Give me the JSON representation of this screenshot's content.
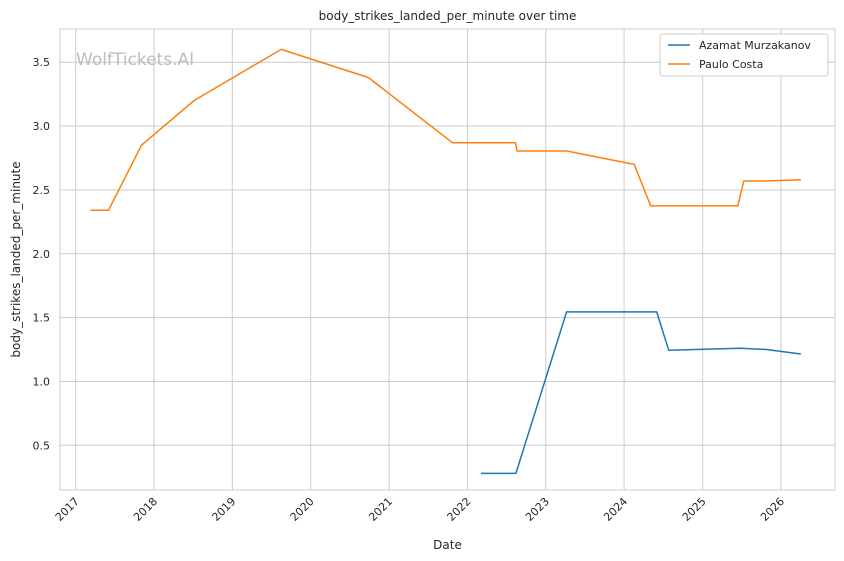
{
  "chart_data": {
    "type": "line",
    "title": "body_strikes_landed_per_minute over time",
    "xlabel": "Date",
    "ylabel": "body_strikes_landed_per_minute",
    "watermark": "WolfTickets.AI",
    "x_ticks": [
      "2017",
      "2018",
      "2019",
      "2020",
      "2021",
      "2022",
      "2023",
      "2024",
      "2025",
      "2026"
    ],
    "y_ticks": [
      "0.5",
      "1.0",
      "1.5",
      "2.0",
      "2.5",
      "3.0",
      "3.5"
    ],
    "xlim": [
      "2016-10-20",
      "2026-09-10"
    ],
    "ylim": [
      0.15,
      3.76
    ],
    "grid": true,
    "legend_position": "top-right",
    "series": [
      {
        "name": "Azamat Murzakanov",
        "color": "#1f77b4",
        "points": [
          [
            "2022-03-05",
            0.28
          ],
          [
            "2022-08-15",
            0.28
          ],
          [
            "2023-04-08",
            1.545
          ],
          [
            "2024-06-01",
            1.545
          ],
          [
            "2024-07-27",
            1.245
          ],
          [
            "2025-06-28",
            1.26
          ],
          [
            "2025-10-25",
            1.25
          ],
          [
            "2026-04-04",
            1.215
          ]
        ]
      },
      {
        "name": "Paulo Costa",
        "color": "#ff7f0e",
        "points": [
          [
            "2017-03-11",
            2.34
          ],
          [
            "2017-06-03",
            2.34
          ],
          [
            "2017-11-04",
            2.85
          ],
          [
            "2018-07-07",
            3.2
          ],
          [
            "2019-08-17",
            3.6
          ],
          [
            "2020-09-26",
            3.38
          ],
          [
            "2021-10-23",
            2.87
          ],
          [
            "2022-08-13",
            2.87
          ],
          [
            "2022-08-20",
            2.805
          ],
          [
            "2023-04-08",
            2.805
          ],
          [
            "2024-02-17",
            2.7
          ],
          [
            "2024-05-04",
            2.375
          ],
          [
            "2025-06-14",
            2.375
          ],
          [
            "2025-07-12",
            2.57
          ],
          [
            "2025-10-25",
            2.57
          ],
          [
            "2026-04-04",
            2.58
          ]
        ]
      }
    ]
  }
}
